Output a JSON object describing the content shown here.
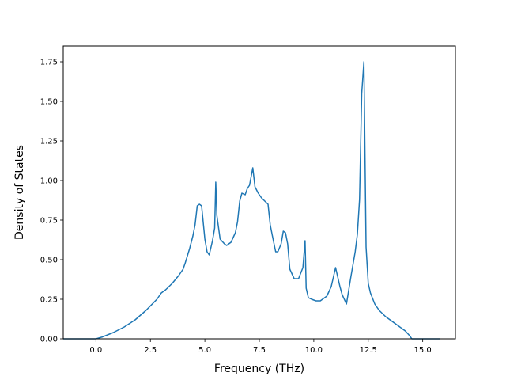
{
  "chart_data": {
    "type": "line",
    "xlabel": "Frequency (THz)",
    "ylabel": "Density of States",
    "xlim": [
      -1.5,
      16.5
    ],
    "ylim": [
      0.0,
      1.85
    ],
    "x_ticks": [
      0.0,
      2.5,
      5.0,
      7.5,
      10.0,
      12.5,
      15.0
    ],
    "x_tick_labels": [
      "0.0",
      "2.5",
      "5.0",
      "7.5",
      "10.0",
      "12.5",
      "15.0"
    ],
    "y_ticks": [
      0.0,
      0.25,
      0.5,
      0.75,
      1.0,
      1.25,
      1.5,
      1.75
    ],
    "y_tick_labels": [
      "0.00",
      "0.25",
      "0.50",
      "0.75",
      "1.00",
      "1.25",
      "1.50",
      "1.75"
    ],
    "grid": false,
    "line_color": "#1f77b4",
    "series": [
      {
        "x": [
          -1.5,
          0.0,
          0.3,
          0.8,
          1.3,
          1.8,
          2.3,
          2.8,
          3.0,
          3.2,
          3.5,
          3.8,
          4.0,
          4.1,
          4.3,
          4.45,
          4.55,
          4.65,
          4.75,
          4.85,
          5.0,
          5.1,
          5.2,
          5.35,
          5.45,
          5.5,
          5.55,
          5.7,
          5.9,
          6.0,
          6.2,
          6.4,
          6.5,
          6.6,
          6.7,
          6.85,
          6.95,
          7.05,
          7.2,
          7.3,
          7.45,
          7.6,
          7.75,
          7.9,
          8.0,
          8.1,
          8.25,
          8.35,
          8.5,
          8.6,
          8.7,
          8.8,
          8.9,
          9.1,
          9.3,
          9.5,
          9.6,
          9.65,
          9.75,
          9.9,
          10.1,
          10.3,
          10.6,
          10.8,
          11.0,
          11.2,
          11.3,
          11.5,
          11.7,
          11.9,
          12.0,
          12.1,
          12.2,
          12.3,
          12.4,
          12.5,
          12.6,
          12.8,
          13.0,
          13.3,
          13.6,
          13.9,
          14.2,
          14.4,
          14.5,
          14.8,
          15.8
        ],
        "y": [
          0.0,
          0.0,
          0.012,
          0.04,
          0.075,
          0.12,
          0.18,
          0.25,
          0.29,
          0.31,
          0.35,
          0.4,
          0.44,
          0.48,
          0.57,
          0.65,
          0.72,
          0.84,
          0.85,
          0.84,
          0.63,
          0.55,
          0.53,
          0.62,
          0.7,
          0.99,
          0.78,
          0.63,
          0.6,
          0.59,
          0.61,
          0.67,
          0.74,
          0.87,
          0.92,
          0.91,
          0.95,
          0.97,
          1.08,
          0.96,
          0.92,
          0.89,
          0.87,
          0.85,
          0.72,
          0.65,
          0.55,
          0.55,
          0.6,
          0.68,
          0.67,
          0.6,
          0.44,
          0.38,
          0.38,
          0.45,
          0.62,
          0.32,
          0.26,
          0.25,
          0.24,
          0.24,
          0.27,
          0.33,
          0.45,
          0.33,
          0.28,
          0.22,
          0.39,
          0.55,
          0.66,
          0.88,
          1.55,
          1.75,
          0.58,
          0.35,
          0.29,
          0.22,
          0.18,
          0.14,
          0.11,
          0.08,
          0.05,
          0.02,
          0.0,
          0.0,
          0.0
        ]
      }
    ]
  }
}
